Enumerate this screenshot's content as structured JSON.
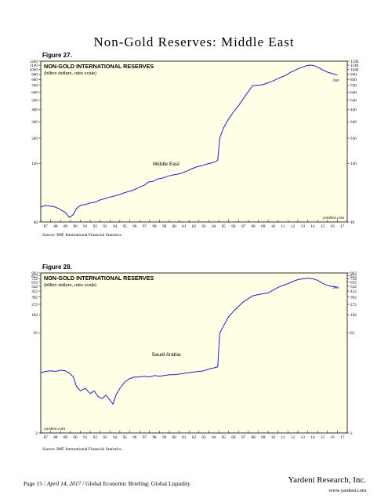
{
  "page": {
    "title": "Non-Gold Reserves: Middle East",
    "footer": {
      "page": "Page 15 /",
      "date": "April 14, 2017",
      "doc": "/  Global Economic Briefing: Global Liquidity",
      "brand": "Yardeni Research, Inc.",
      "url": "www.yardeni.com"
    }
  },
  "chart_data": [
    {
      "type": "line",
      "figure_label": "Figure 27.",
      "title": "NON-GOLD INTERNATIONAL RESERVES",
      "subtitle": "(billion dollars, ratio scale)",
      "series_label": "Middle East",
      "end_label": "Jan",
      "watermark": "yardeni.com",
      "source": "Source: IMF International Financial Statistics.",
      "scale": "log",
      "ylim": [
        40,
        1240
      ],
      "yticks": [
        40,
        140,
        240,
        340,
        440,
        540,
        640,
        740,
        840,
        940,
        1040,
        1140,
        1240
      ],
      "xlim": [
        1987,
        2018
      ],
      "xticks": [
        "87",
        "88",
        "89",
        "90",
        "91",
        "92",
        "93",
        "94",
        "95",
        "96",
        "97",
        "98",
        "99",
        "00",
        "01",
        "02",
        "03",
        "04",
        "05",
        "06",
        "07",
        "08",
        "09",
        "10",
        "11",
        "12",
        "13",
        "14",
        "15",
        "16",
        "17",
        "18"
      ],
      "series": [
        {
          "color": "#1f1fd6",
          "x": [
            1987.0,
            1987.5,
            1988.0,
            1988.5,
            1989.0,
            1989.5,
            1989.9,
            1990.3,
            1990.6,
            1991.0,
            1991.5,
            1992.0,
            1992.5,
            1993.0,
            1993.5,
            1994.0,
            1994.5,
            1995.0,
            1995.5,
            1996.0,
            1996.5,
            1997.0,
            1997.5,
            1997.9,
            1998.3,
            1998.8,
            1999.3,
            1999.8,
            2000.3,
            2000.8,
            2001.3,
            2001.8,
            2002.3,
            2002.8,
            2003.3,
            2003.8,
            2004.3,
            2004.7,
            2004.9,
            2005.1,
            2005.5,
            2006.0,
            2006.5,
            2007.0,
            2007.5,
            2008.0,
            2008.4,
            2008.8,
            2009.3,
            2009.8,
            2010.3,
            2010.8,
            2011.3,
            2011.8,
            2012.3,
            2012.8,
            2013.3,
            2013.8,
            2014.2,
            2014.6,
            2015.0,
            2015.5,
            2016.0,
            2016.5,
            2017.0
          ],
          "y": [
            55,
            57,
            56,
            55,
            52,
            49,
            44,
            47,
            53,
            57,
            58,
            60,
            61,
            64,
            66,
            68,
            70,
            72,
            75,
            77,
            80,
            84,
            88,
            94,
            95,
            100,
            102,
            106,
            109,
            111,
            114,
            119,
            125,
            130,
            133,
            138,
            141,
            145,
            150,
            240,
            300,
            360,
            420,
            480,
            560,
            650,
            730,
            740,
            745,
            770,
            800,
            840,
            880,
            920,
            980,
            1030,
            1080,
            1120,
            1140,
            1130,
            1090,
            1030,
            980,
            950,
            920
          ]
        }
      ]
    },
    {
      "type": "line",
      "figure_label": "Figure 28.",
      "title": "NON-GOLD INTERNATIONAL RESERVES",
      "subtitle": "(billion dollars, ratio scale)",
      "series_label": "Saudi Arabia",
      "end_label": "Jan",
      "watermark": "yardeni.com",
      "source": "Source: IMF International Financial Statistics.",
      "scale": "log",
      "ylim": [
        2,
        902
      ],
      "yticks": [
        2,
        92,
        182,
        272,
        362,
        452,
        542,
        632,
        722,
        812,
        902
      ],
      "xlim": [
        1987,
        2018
      ],
      "xticks": [
        "87",
        "88",
        "89",
        "90",
        "91",
        "92",
        "93",
        "94",
        "95",
        "96",
        "97",
        "98",
        "99",
        "00",
        "01",
        "02",
        "03",
        "04",
        "05",
        "06",
        "07",
        "08",
        "09",
        "10",
        "11",
        "12",
        "13",
        "14",
        "15",
        "16",
        "17",
        "18"
      ],
      "series": [
        {
          "color": "#1f1fd6",
          "x": [
            1987.0,
            1987.5,
            1988.0,
            1988.5,
            1989.0,
            1989.5,
            1990.0,
            1990.3,
            1990.6,
            1991.0,
            1991.5,
            1992.0,
            1992.4,
            1992.8,
            1993.2,
            1993.6,
            1994.0,
            1994.3,
            1994.6,
            1995.0,
            1995.5,
            1996.0,
            1996.5,
            1997.0,
            1997.5,
            1998.0,
            1998.5,
            1999.0,
            1999.5,
            2000.0,
            2000.5,
            2001.0,
            2001.5,
            2002.0,
            2002.5,
            2003.0,
            2003.5,
            2004.0,
            2004.5,
            2004.9,
            2005.1,
            2005.5,
            2006.0,
            2006.5,
            2007.0,
            2007.5,
            2008.0,
            2008.5,
            2009.0,
            2009.5,
            2010.0,
            2010.5,
            2011.0,
            2011.5,
            2012.0,
            2012.5,
            2013.0,
            2013.5,
            2014.0,
            2014.5,
            2015.0,
            2015.5,
            2016.0,
            2016.5,
            2017.0
          ],
          "y": [
            20,
            21,
            21.5,
            21,
            22,
            21.5,
            19,
            17,
            12,
            10,
            11,
            9,
            10,
            8,
            7.5,
            8.5,
            7,
            6,
            8.5,
            11,
            14,
            16,
            17,
            17,
            17.5,
            17,
            18,
            17.5,
            18,
            18.5,
            18.5,
            19,
            19.5,
            20,
            20.5,
            21,
            21.5,
            23,
            24,
            25,
            90,
            120,
            170,
            210,
            250,
            300,
            340,
            380,
            395,
            410,
            420,
            470,
            520,
            560,
            600,
            650,
            700,
            720,
            735,
            725,
            680,
            610,
            560,
            535,
            520
          ]
        }
      ]
    }
  ]
}
